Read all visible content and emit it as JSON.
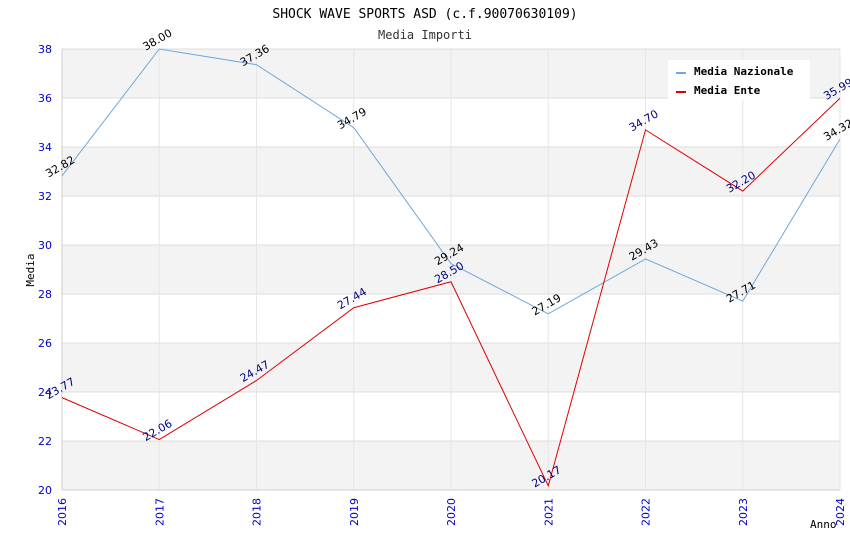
{
  "chart_data": {
    "type": "line",
    "title": "SHOCK WAVE SPORTS ASD (c.f.90070630109)",
    "subtitle": "Media Importi",
    "xlabel": "Anno",
    "ylabel": "Media",
    "x": [
      "2016",
      "2017",
      "2018",
      "2019",
      "2020",
      "2021",
      "2022",
      "2023",
      "2024"
    ],
    "ylim": [
      20,
      38
    ],
    "yticks": [
      20,
      22,
      24,
      26,
      28,
      30,
      32,
      34,
      36,
      38
    ],
    "grid": true,
    "legend_position": "top-right",
    "series": [
      {
        "name": "Media Nazionale",
        "color": "#6fa8dc",
        "values": [
          32.82,
          38.0,
          37.36,
          34.79,
          29.24,
          27.19,
          29.43,
          27.71,
          34.32
        ],
        "labels": [
          "32.82",
          "38.00",
          "37.36",
          "34.79",
          "29.24",
          "27.19",
          "29.43",
          "27.71",
          "34.32"
        ]
      },
      {
        "name": "Media Ente",
        "color": "#dd0000",
        "values": [
          23.77,
          22.06,
          24.47,
          27.44,
          28.5,
          20.17,
          34.7,
          32.2,
          35.99
        ],
        "labels": [
          "23.77",
          "22.06",
          "24.47",
          "27.44",
          "28.50",
          "20.17",
          "34.70",
          "32.20",
          "35.99"
        ]
      }
    ]
  }
}
